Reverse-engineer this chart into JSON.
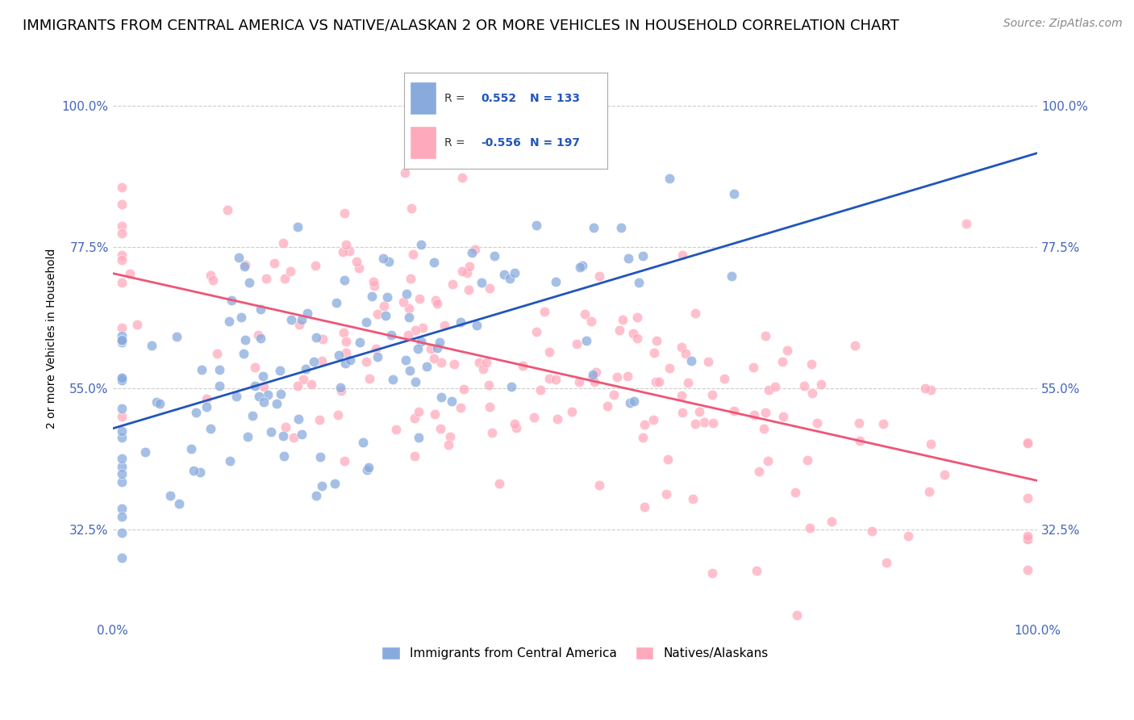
{
  "title": "IMMIGRANTS FROM CENTRAL AMERICA VS NATIVE/ALASKAN 2 OR MORE VEHICLES IN HOUSEHOLD CORRELATION CHART",
  "source": "Source: ZipAtlas.com",
  "ylabel": "2 or more Vehicles in Household",
  "blue_R": 0.552,
  "blue_N": 133,
  "pink_R": -0.556,
  "pink_N": 197,
  "blue_color": "#88AADD",
  "pink_color": "#FFAABC",
  "blue_line_color": "#2255BB",
  "pink_line_color": "#EE5577",
  "legend_blue_label": "Immigrants from Central America",
  "legend_pink_label": "Natives/Alaskans",
  "xlim": [
    0.0,
    1.0
  ],
  "ylim": [
    0.18,
    1.08
  ],
  "yticks": [
    0.325,
    0.55,
    0.775,
    1.0
  ],
  "ytick_labels": [
    "32.5%",
    "55.0%",
    "77.5%",
    "100.0%"
  ],
  "xticks": [
    0.0,
    1.0
  ],
  "xtick_labels": [
    "0.0%",
    "100.0%"
  ],
  "background_color": "#FFFFFF",
  "grid_color": "#CCCCCC",
  "title_fontsize": 13,
  "axis_label_fontsize": 10,
  "tick_fontsize": 11,
  "legend_fontsize": 11,
  "source_fontsize": 10,
  "marker_size": 9,
  "marker_alpha": 0.75,
  "blue_seed": 7,
  "pink_seed": 13
}
